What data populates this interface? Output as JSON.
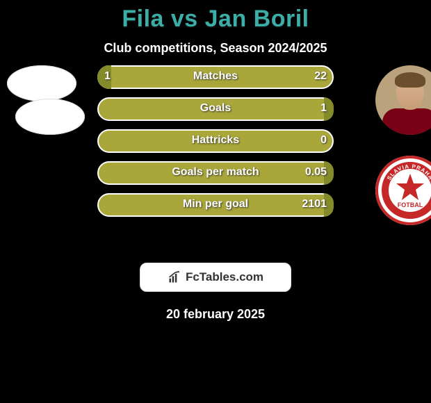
{
  "title": "Fila vs Jan Boril",
  "subtitle": "Club competitions, Season 2024/2025",
  "colors": {
    "title": "#3baea8",
    "bar_bg": "#a9a73a",
    "bar_fill": "#838b2b",
    "panel_bg": "#000000",
    "badge_bg": "#ffffff"
  },
  "rows": [
    {
      "label": "Matches",
      "left": "1",
      "right": "22",
      "fill_side": "left",
      "fill_pct": 6
    },
    {
      "label": "Goals",
      "left": null,
      "right": "1",
      "fill_side": "right",
      "fill_pct": 4
    },
    {
      "label": "Hattricks",
      "left": null,
      "right": "0",
      "fill_side": null,
      "fill_pct": 0
    },
    {
      "label": "Goals per match",
      "left": null,
      "right": "0.05",
      "fill_side": "right",
      "fill_pct": 4
    },
    {
      "label": "Min per goal",
      "left": null,
      "right": "2101",
      "fill_side": "right",
      "fill_pct": 4
    }
  ],
  "badge_text": "FcTables.com",
  "date_text": "20 february 2025",
  "club_badge": {
    "top_text": "SLAVIA PRAHA",
    "bottom_text": "FOTBAL",
    "outer": "#c62828",
    "inner": "#ffffff",
    "star": "#c62828"
  }
}
